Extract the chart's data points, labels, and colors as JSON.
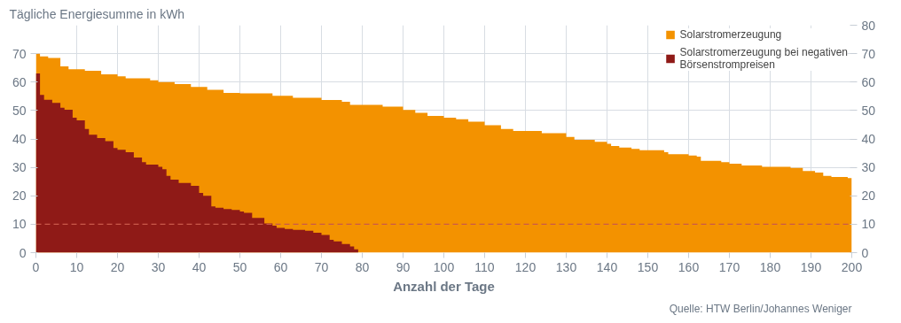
{
  "chart_data": {
    "type": "area",
    "ylabel": "Tägliche Energiesumme in kWh",
    "xlabel": "Anzahl der Tage",
    "annotations": [
      "Quelle: HTW Berlin/Johannes Weniger"
    ],
    "xlim": [
      0,
      200
    ],
    "xticks": [
      0,
      10,
      20,
      30,
      40,
      50,
      60,
      70,
      80,
      90,
      100,
      110,
      120,
      130,
      140,
      150,
      160,
      170,
      180,
      190,
      200
    ],
    "ylim": [
      0,
      80
    ],
    "yticks": [
      0,
      10,
      20,
      30,
      40,
      50,
      60,
      70
    ],
    "y2lim": [
      0,
      80
    ],
    "y2ticks": [
      0,
      10,
      20,
      30,
      40,
      50,
      60,
      70,
      80
    ],
    "grid": true,
    "legend": "top right",
    "ref_lines": [
      {
        "axis": "y",
        "value": 10,
        "label": null,
        "color": "#c9594a",
        "line_style": "dashed"
      }
    ],
    "series": [
      {
        "name": "Solarstromerzeugung",
        "color": "#f39200",
        "x": [
          0,
          1,
          3,
          6,
          8,
          12,
          16,
          20,
          22,
          28,
          30,
          34,
          38,
          42,
          46,
          50,
          58,
          63,
          70,
          75,
          77,
          80,
          85,
          90,
          93,
          96,
          100,
          103,
          106,
          110,
          114,
          117,
          124,
          130,
          132,
          137,
          140,
          141,
          143,
          146,
          148,
          154,
          155,
          160,
          162,
          163,
          168,
          170,
          173,
          178,
          185,
          188,
          191,
          193,
          195,
          199,
          200
        ],
        "values": [
          70,
          69,
          68.5,
          65.5,
          64.5,
          64,
          62.7,
          62,
          61.3,
          60.6,
          60,
          59.3,
          58.3,
          57.3,
          56.2,
          56,
          55.2,
          54.5,
          53.7,
          53.1,
          52,
          52,
          51.4,
          50.2,
          49.2,
          48.1,
          47.5,
          46.9,
          46.1,
          44.8,
          43.5,
          42.8,
          42,
          40.7,
          39.7,
          39,
          38.3,
          37.5,
          37,
          36.5,
          36,
          35.3,
          34.6,
          34.2,
          33.8,
          32.3,
          31.8,
          31.3,
          30.7,
          30.2,
          29.8,
          28.7,
          28.2,
          27,
          26.6,
          26.2,
          26.2
        ]
      },
      {
        "name": "Solarstromerzeugung bei negativen Börsenstrompreisen",
        "color": "#8f1a17",
        "x": [
          0,
          1,
          2,
          4,
          6,
          7,
          9,
          10,
          12,
          13,
          15,
          17,
          19,
          20,
          22,
          24,
          26,
          27,
          30,
          31,
          32,
          33,
          35,
          38,
          40,
          41,
          43,
          44,
          46,
          48,
          50,
          51,
          53,
          56,
          58,
          59,
          61,
          63,
          66,
          68,
          70,
          72,
          73,
          75,
          77,
          78,
          79
        ],
        "values": [
          63,
          55.5,
          53.8,
          52.7,
          51,
          50.3,
          47.5,
          46.5,
          43.5,
          41.5,
          40.3,
          39.2,
          36.8,
          36.2,
          35.3,
          33.5,
          31.8,
          31,
          30.2,
          29.3,
          27,
          25.7,
          24.5,
          23.5,
          21,
          20,
          16.3,
          15.8,
          15.3,
          15,
          14.5,
          14,
          12.2,
          10.3,
          9.5,
          8.7,
          8.3,
          8,
          7.7,
          7,
          6.2,
          4.5,
          4,
          3,
          2.2,
          1.2,
          1.2
        ]
      }
    ]
  }
}
